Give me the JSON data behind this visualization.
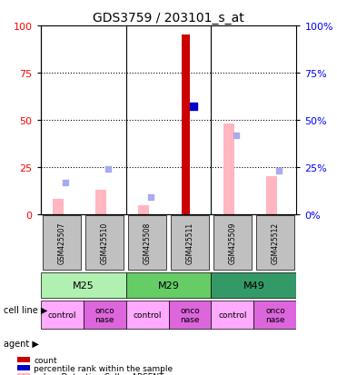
{
  "title": "GDS3759 / 203101_s_at",
  "samples": [
    "GSM425507",
    "GSM425510",
    "GSM425508",
    "GSM425511",
    "GSM425509",
    "GSM425512"
  ],
  "cell_lines": [
    {
      "label": "M25",
      "span": [
        0,
        2
      ],
      "color": "#90ee90"
    },
    {
      "label": "M29",
      "span": [
        2,
        4
      ],
      "color": "#3cb371"
    },
    {
      "label": "M49",
      "span": [
        4,
        6
      ],
      "color": "#2e8b57"
    }
  ],
  "agents": [
    "control",
    "onco\nnase",
    "control",
    "onco\nnase",
    "control",
    "onco\nnase"
  ],
  "agent_colors": [
    "#ff99ff",
    "#ff66ff",
    "#ff99ff",
    "#ff66ff",
    "#ff99ff",
    "#ff66ff"
  ],
  "count_values": [
    null,
    null,
    null,
    95,
    null,
    null
  ],
  "rank_values": [
    null,
    null,
    null,
    57,
    null,
    null
  ],
  "value_absent": [
    8,
    13,
    5,
    null,
    48,
    20
  ],
  "rank_absent": [
    17,
    24,
    9,
    null,
    42,
    23
  ],
  "count_color": "#cc0000",
  "rank_color": "#0000cc",
  "value_absent_color": "#ffb6c1",
  "rank_absent_color": "#aaaaee",
  "ylim_left": [
    0,
    100
  ],
  "ylim_right": [
    0,
    100
  ],
  "yticks": [
    0,
    25,
    50,
    75,
    100
  ],
  "grid_color": "black",
  "bar_width": 0.35,
  "plot_bg": "#e8e8e8",
  "sample_bg": "#c0c0c0"
}
